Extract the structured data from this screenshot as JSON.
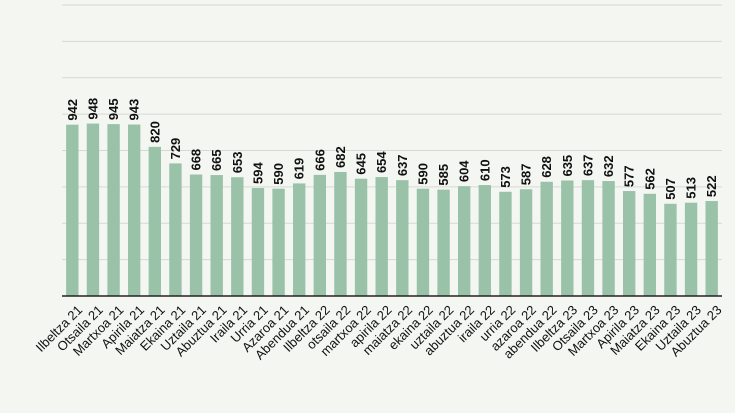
{
  "chart_data": {
    "type": "bar",
    "categories": [
      "Ilbeltza 21",
      "Otsaila 21",
      "Martxoa 21",
      "Apirila 21",
      "Maiatza 21",
      "Ekaina 21",
      "Uztaila 21",
      "Abuztua 21",
      "Iraila 21",
      "Urria 21",
      "Azaroa 21",
      "Abendua 21",
      "Ilbeltza 22",
      "otsaila 22",
      "martxoa 22",
      "apirila 22",
      "maiatza 22",
      "ekaina 22",
      "uztaila 22",
      "abuztua 22",
      "iraila 22",
      "urria 22",
      "azaroa 22",
      "abendua 22",
      "Ilbeltza 23",
      "Otsaila 23",
      "Martxoa 23",
      "Apirila 23",
      "Maiatza 23",
      "Ekaina 23",
      "Uztaila 23",
      "Abuztua 23"
    ],
    "values": [
      942,
      948,
      945,
      943,
      820,
      729,
      668,
      665,
      653,
      594,
      590,
      619,
      666,
      682,
      645,
      654,
      637,
      590,
      585,
      604,
      610,
      573,
      587,
      628,
      635,
      637,
      632,
      577,
      562,
      507,
      513,
      522
    ],
    "value_labels": [
      "942",
      "948",
      "945",
      "943",
      "820",
      "729",
      "668",
      "665",
      "653",
      "594",
      "590",
      "619",
      "666",
      "682",
      "645",
      "654",
      "637",
      "590",
      "585",
      "604",
      "610",
      "573",
      "587",
      "628",
      "635",
      "637",
      "632",
      "577",
      "562",
      "507",
      "513",
      "522"
    ],
    "ylim": [
      0,
      1600
    ],
    "grid": true,
    "colors": {
      "bar": "#99c2a8",
      "grid": "#d5d9d4",
      "axis": "#222222",
      "background": "#f4f6f2"
    }
  }
}
